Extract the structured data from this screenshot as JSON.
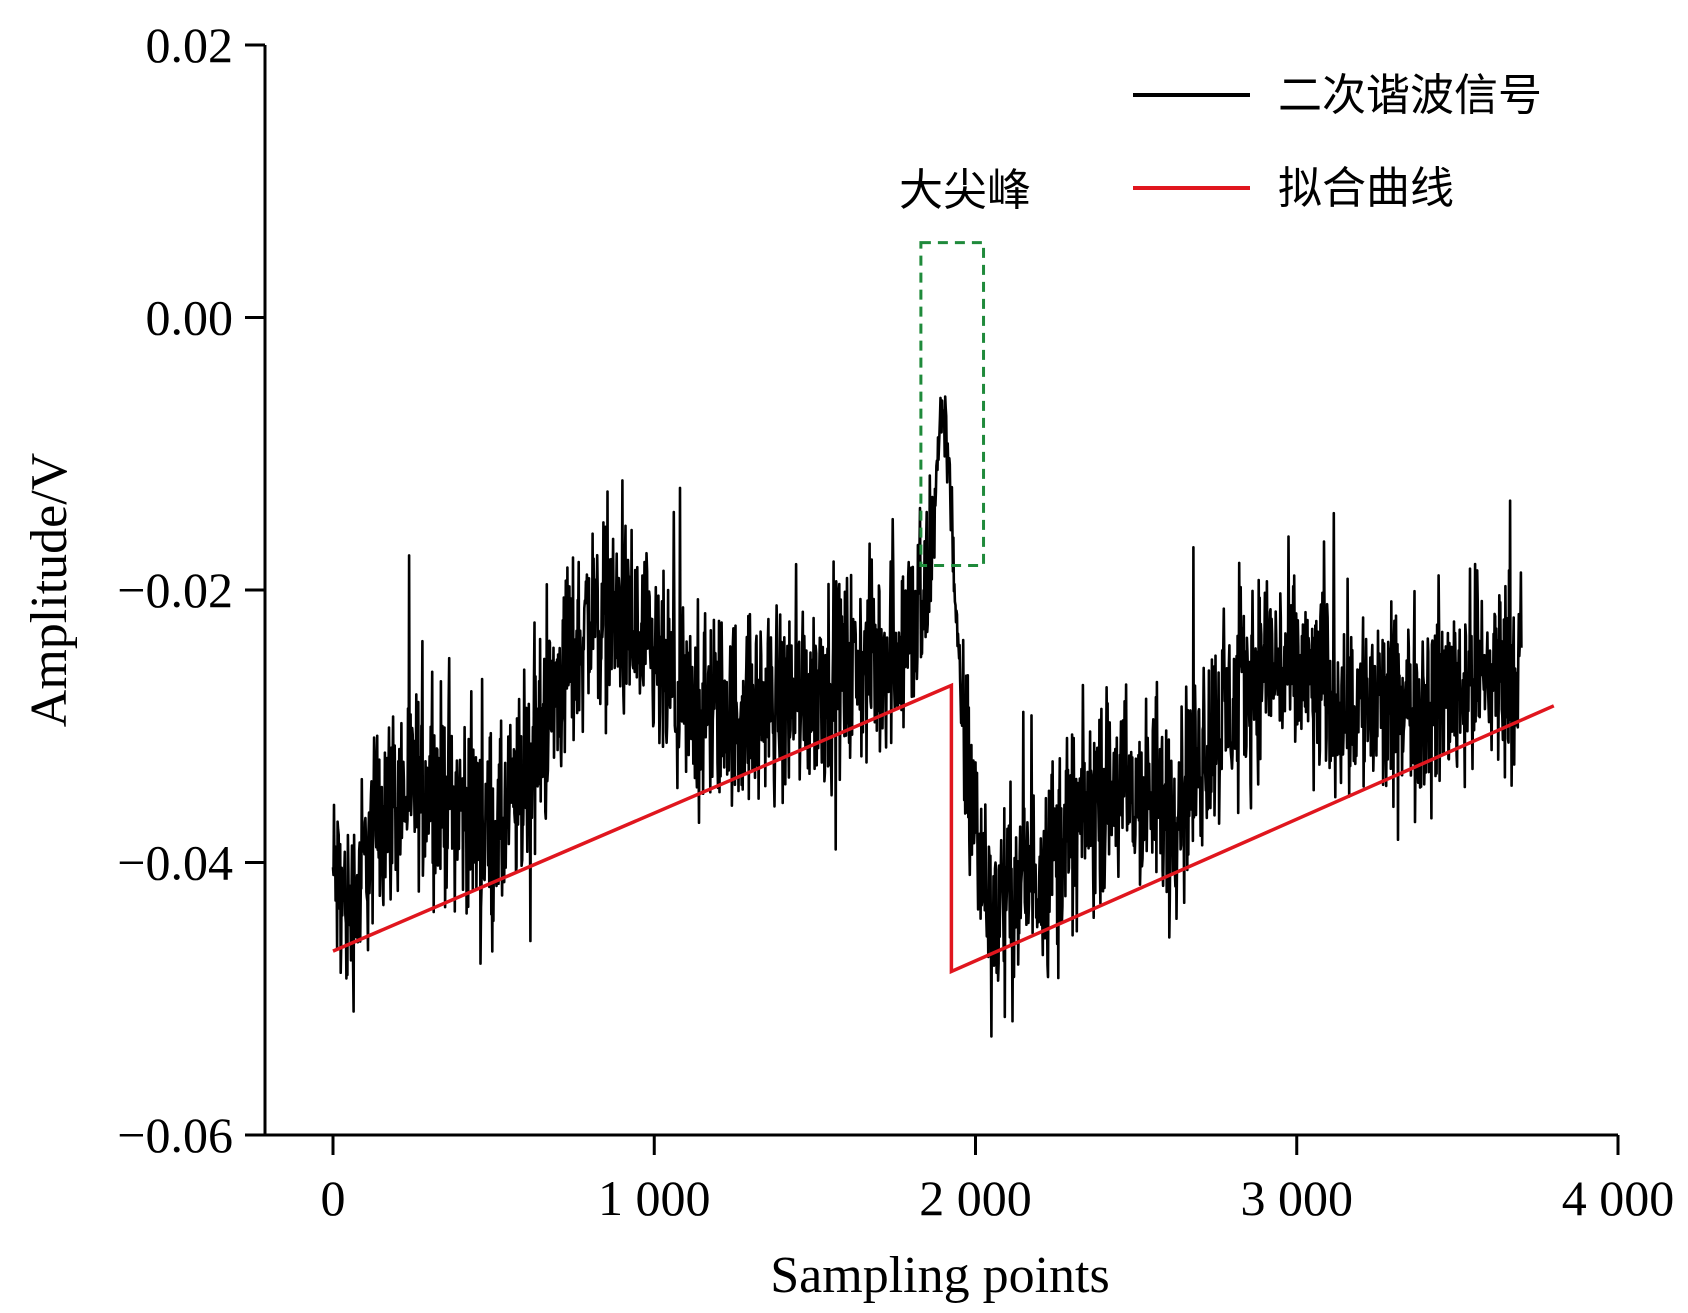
{
  "chart_data": {
    "type": "line",
    "xlabel": "Sampling points",
    "ylabel": "Amplitude/V",
    "xlim": [
      -200,
      4000
    ],
    "ylim": [
      -0.06,
      0.02
    ],
    "x_ticks": [
      0,
      1000,
      2000,
      3000,
      4000
    ],
    "x_tick_labels": [
      "0",
      "1 000",
      "2 000",
      "3 000",
      "4 000"
    ],
    "y_ticks": [
      0.02,
      0.0,
      -0.02,
      -0.04,
      -0.06
    ],
    "y_tick_labels": [
      "0.02",
      "0.00",
      "−0.02",
      "−0.04",
      "−0.06"
    ],
    "series": [
      {
        "name": "二次谐波信号",
        "color": "#000000",
        "style": "noisy",
        "noise_amplitude": 0.0035,
        "x": [
          0,
          50,
          150,
          300,
          450,
          520,
          600,
          700,
          800,
          880,
          950,
          1100,
          1300,
          1500,
          1700,
          1800,
          1840,
          1870,
          1895,
          1920,
          1945,
          1970,
          2000,
          2050,
          2200,
          2400,
          2600,
          2750,
          2900,
          3050,
          3300,
          3500,
          3700
        ],
        "y": [
          -0.041,
          -0.044,
          -0.036,
          -0.034,
          -0.037,
          -0.038,
          -0.034,
          -0.027,
          -0.022,
          -0.022,
          -0.024,
          -0.029,
          -0.029,
          -0.027,
          -0.025,
          -0.023,
          -0.022,
          -0.015,
          -0.006,
          -0.011,
          -0.025,
          -0.033,
          -0.037,
          -0.044,
          -0.04,
          -0.035,
          -0.036,
          -0.03,
          -0.025,
          -0.027,
          -0.029,
          -0.027,
          -0.025
        ]
      },
      {
        "name": "拟合曲线",
        "color": "#e0161e",
        "style": "line",
        "x": [
          0,
          1925,
          1925,
          3800
        ],
        "y": [
          -0.0465,
          -0.027,
          -0.048,
          -0.0285
        ]
      }
    ],
    "annotation": {
      "text": "大尖峰",
      "box_x": [
        1830,
        2025
      ],
      "box_y": [
        -0.0182,
        0.0055
      ],
      "box_color": "#1f8a3b"
    },
    "legend": {
      "position": "top-right"
    },
    "grid": false
  }
}
